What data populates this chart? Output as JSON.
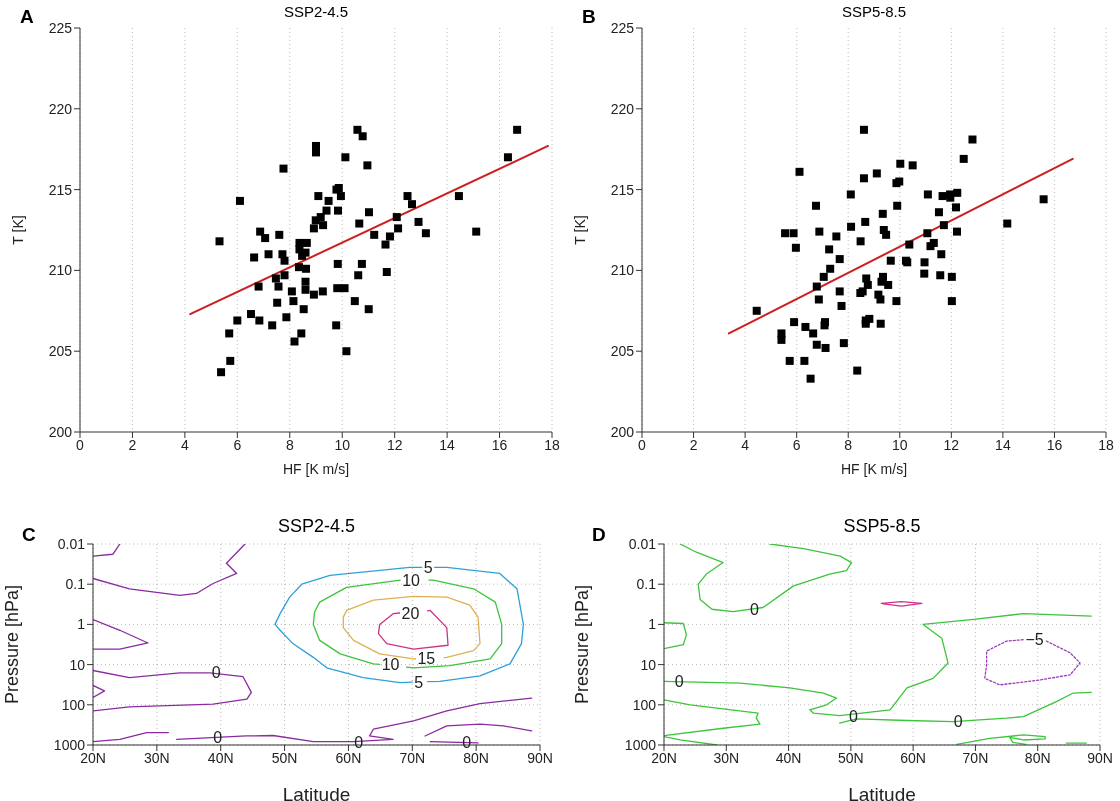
{
  "chart_data": [
    {
      "type": "scatter",
      "title": "SSP2-4.5",
      "xlabel": "HF [K m/s]",
      "ylabel": "T [K]",
      "annotations": [
        "A"
      ],
      "xlim": [
        0,
        18
      ],
      "xticks": [
        0,
        2,
        4,
        6,
        8,
        10,
        12,
        14,
        16,
        18
      ],
      "ylim": [
        200,
        225
      ],
      "yticks": [
        200,
        205,
        210,
        215,
        220,
        225
      ],
      "grid": "x",
      "marker": "square",
      "series": [
        {
          "type": "scatter",
          "color": "#000000",
          "x": [
            5.38,
            5.73,
            5.69,
            6.0,
            6.1,
            5.32,
            6.64,
            6.52,
            6.84,
            6.87,
            7.06,
            7.19,
            6.81,
            7.33,
            7.6,
            7.76,
            7.72,
            7.8,
            7.8,
            7.47,
            7.57,
            7.52,
            7.87,
            8.18,
            8.44,
            8.08,
            8.14,
            8.37,
            8.37,
            8.47,
            8.6,
            8.65,
            8.35,
            8.62,
            8.6,
            8.6,
            8.53,
            8.92,
            8.92,
            8.99,
            9.18,
            9.27,
            9.0,
            9.0,
            9.09,
            9.26,
            9.4,
            9.48,
            9.78,
            9.87,
            9.95,
            9.84,
            9.83,
            9.81,
            9.77,
            10.09,
            10.16,
            10.12,
            10.58,
            10.78,
            10.96,
            10.65,
            11.02,
            10.61,
            10.75,
            10.48,
            11.01,
            11.22,
            11.65,
            11.82,
            11.7,
            12.13,
            12.08,
            12.49,
            12.66,
            12.91,
            13.19,
            14.45,
            15.11,
            16.32,
            16.67
          ],
          "values": [
            203.7,
            204.4,
            206.1,
            206.9,
            214.3,
            211.8,
            210.8,
            207.3,
            206.9,
            212.4,
            212.0,
            211.0,
            209.0,
            206.6,
            212.2,
            216.3,
            211.0,
            210.6,
            209.7,
            209.5,
            209.0,
            208.0,
            207.1,
            205.6,
            206.1,
            208.7,
            208.1,
            211.7,
            211.3,
            210.9,
            211.1,
            211.7,
            210.2,
            210.1,
            209.3,
            208.8,
            207.6,
            208.5,
            212.6,
            213.1,
            213.3,
            212.8,
            217.7,
            217.3,
            214.6,
            208.7,
            213.7,
            214.3,
            215.0,
            215.1,
            214.6,
            213.7,
            210.4,
            208.9,
            206.6,
            208.9,
            205.0,
            217.0,
            218.7,
            218.3,
            216.5,
            212.9,
            213.6,
            209.7,
            210.4,
            208.1,
            207.6,
            212.2,
            211.6,
            212.1,
            209.9,
            212.6,
            213.3,
            214.6,
            214.1,
            213.0,
            212.3,
            214.6,
            212.4,
            217.0,
            218.7
          ]
        },
        {
          "type": "line",
          "color": "#cc1f1f",
          "line_style": "solid",
          "marker": "none",
          "x": [
            4.2,
            17.85
          ],
          "values": [
            207.3,
            217.7
          ]
        }
      ]
    },
    {
      "type": "scatter",
      "title": "SSP5-8.5",
      "xlabel": "HF [K m/s]",
      "ylabel": "T [K]",
      "annotations": [
        "B"
      ],
      "xlim": [
        0,
        18
      ],
      "xticks": [
        0,
        2,
        4,
        6,
        8,
        10,
        12,
        14,
        16,
        18
      ],
      "ylim": [
        200,
        225
      ],
      "yticks": [
        200,
        205,
        210,
        215,
        220,
        225
      ],
      "grid": "x",
      "marker": "square",
      "series": [
        {
          "type": "scatter",
          "color": "#000000",
          "x": [
            4.45,
            5.41,
            5.41,
            5.73,
            5.55,
            5.88,
            5.97,
            6.11,
            5.9,
            6.34,
            6.3,
            6.54,
            6.64,
            6.78,
            6.75,
            6.88,
            6.78,
            6.86,
            7.05,
            7.08,
            7.1,
            7.12,
            7.26,
            7.3,
            7.54,
            7.67,
            7.67,
            7.74,
            7.83,
            8.1,
            8.11,
            8.48,
            8.47,
            8.56,
            8.61,
            8.61,
            8.66,
            8.7,
            8.76,
            8.68,
            8.82,
            8.68,
            8.35,
            9.11,
            9.17,
            9.25,
            9.26,
            9.34,
            9.38,
            9.47,
            9.35,
            9.29,
            9.55,
            9.65,
            9.87,
            9.98,
            9.9,
            9.87,
            10.02,
            10.5,
            10.37,
            10.24,
            10.29,
            10.96,
            10.95,
            11.09,
            11.07,
            11.19,
            11.32,
            11.61,
            11.57,
            11.52,
            11.66,
            11.71,
            11.95,
            11.96,
            12.02,
            12.02,
            12.18,
            12.23,
            12.22,
            12.48,
            12.82,
            14.17,
            15.58
          ],
          "values": [
            207.5,
            206.1,
            205.7,
            204.4,
            212.3,
            212.3,
            211.4,
            216.1,
            206.8,
            206.5,
            204.4,
            203.3,
            206.1,
            205.4,
            214.0,
            212.4,
            209.0,
            208.2,
            209.6,
            206.6,
            206.8,
            205.2,
            211.3,
            210.1,
            212.1,
            210.7,
            208.7,
            207.8,
            205.5,
            214.7,
            212.7,
            211.8,
            208.6,
            208.7,
            218.7,
            215.7,
            213.0,
            209.5,
            209.1,
            206.9,
            207.0,
            206.7,
            203.8,
            216.0,
            208.5,
            208.2,
            206.7,
            213.5,
            212.5,
            212.2,
            209.6,
            209.3,
            209.1,
            210.6,
            215.4,
            215.5,
            214.0,
            208.1,
            216.6,
            216.5,
            211.6,
            210.6,
            210.5,
            210.5,
            209.8,
            214.7,
            212.3,
            211.5,
            211.7,
            211.0,
            209.7,
            213.6,
            214.6,
            212.8,
            214.7,
            214.5,
            209.6,
            208.1,
            213.9,
            214.8,
            212.4,
            216.9,
            218.1,
            212.9,
            214.4
          ]
        },
        {
          "type": "line",
          "color": "#cc1f1f",
          "line_style": "solid",
          "marker": "none",
          "x": [
            3.37,
            16.71
          ],
          "values": [
            206.1,
            216.9
          ]
        }
      ]
    },
    {
      "type": "line",
      "title": "SSP2-4.5",
      "xlabel": "Latitude",
      "ylabel": "Pressure [hPa]",
      "log": "y",
      "grid": true,
      "marker": "none",
      "line_style": "solid",
      "xlim": [
        20,
        90
      ],
      "xticks": [
        {
          "value": 20,
          "label": "20N"
        },
        {
          "value": 30,
          "label": "30N"
        },
        {
          "value": 40,
          "label": "40N"
        },
        {
          "value": 50,
          "label": "50N"
        },
        {
          "value": 60,
          "label": "60N"
        },
        {
          "value": 70,
          "label": "70N"
        },
        {
          "value": 80,
          "label": "80N"
        },
        {
          "value": 90,
          "label": "90N"
        }
      ],
      "ylim": [
        1000,
        0.01
      ],
      "yticks": [
        0.01,
        0.1,
        1,
        10,
        100,
        1000
      ],
      "annotations": [
        "C",
        {
          "text": "5",
          "x": 71.5,
          "y": 0.038
        },
        {
          "text": "10",
          "x": 68.1,
          "y": 0.079
        },
        {
          "text": "20",
          "x": 68.0,
          "y": 0.52
        },
        {
          "text": "15",
          "x": 70.5,
          "y": 7.15
        },
        {
          "text": "10",
          "x": 64.9,
          "y": 9.9
        },
        {
          "text": "5",
          "x": 70.0,
          "y": 27.4
        },
        {
          "text": "0",
          "x": 38.3,
          "y": 16
        },
        {
          "text": "0",
          "x": 38.5,
          "y": 656
        },
        {
          "text": "0",
          "x": 60.6,
          "y": 840
        },
        {
          "text": "0",
          "x": 77.5,
          "y": 840
        }
      ],
      "series": [
        {
          "color": "#2ea0d8",
          "x": [
            71.5,
            69.6,
            57.1,
            52.7,
            50.8,
            49.3,
            48.5,
            49.3,
            51.3,
            54.5,
            56.6,
            62.3,
            68.1,
            70.0
          ],
          "values": [
            0.038,
            0.038,
            0.06,
            0.1,
            0.21,
            0.54,
            1,
            1.4,
            3,
            6.6,
            12,
            21,
            28,
            27.4
          ]
        },
        {
          "color": "#2ea0d8",
          "x": [
            73.5,
            75.4,
            83.7,
            86.4,
            87.4,
            87.1,
            85.3,
            80.6,
            74.3,
            72.4
          ],
          "values": [
            0.038,
            0.038,
            0.054,
            0.13,
            1,
            3,
            9.6,
            19,
            26,
            26.6
          ]
        },
        {
          "color": "#3cc43c",
          "x": [
            68.1,
            59.7,
            55.5,
            54.7,
            54.5,
            55.5,
            58.7,
            63.9,
            64.9
          ],
          "values": [
            0.079,
            0.12,
            0.28,
            0.49,
            1,
            2.5,
            5.4,
            9.6,
            9.9
          ]
        },
        {
          "color": "#3cc43c",
          "x": [
            72.6,
            73.3,
            79.6,
            83.0,
            84.0,
            84.0,
            82.2,
            75.9,
            70.2,
            69.1
          ],
          "values": [
            0.079,
            0.079,
            0.13,
            0.28,
            1,
            3,
            7.2,
            10.6,
            12,
            11.6
          ]
        },
        {
          "color": "#e0b050",
          "x": [
            70.5,
            70.2,
            64.9,
            60.8,
            59.2,
            59.2,
            59.7,
            63.9,
            70.2,
            75.4,
            79.0,
            80.3,
            80.6,
            79.6,
            75.4,
            75.0
          ],
          "values": [
            7.15,
            7.2,
            5.4,
            2.5,
            1.2,
            0.66,
            0.45,
            0.25,
            0.2,
            0.21,
            0.33,
            0.66,
            3,
            4.5,
            6.6,
            6.7
          ]
        },
        {
          "color": "#d0308a",
          "x": [
            72.4,
            72.8,
            75.4,
            75.6,
            70.2,
            66.0,
            64.7,
            64.9,
            67.0,
            68.0
          ],
          "values": [
            0.46,
            0.45,
            1.2,
            3.3,
            4.1,
            3,
            1.7,
            1,
            0.54,
            0.52
          ]
        },
        {
          "color": "#8a2aa0",
          "x": [
            20,
            23.1,
            24.2
          ],
          "values": [
            0.02,
            0.018,
            0.01
          ]
        },
        {
          "color": "#8a2aa0",
          "x": [
            20,
            25.7,
            33.6,
            36.2,
            38.8,
            42.5,
            40.9,
            43.8
          ],
          "values": [
            0.072,
            0.13,
            0.19,
            0.17,
            0.096,
            0.054,
            0.03,
            0.01
          ]
        },
        {
          "color": "#8a2aa0",
          "x": [
            20,
            24.2,
            28.6,
            24.2,
            20
          ],
          "values": [
            0.76,
            1.4,
            2.9,
            4.1,
            4.1
          ]
        },
        {
          "color": "#8a2aa0",
          "x": [
            20,
            25.7,
            33.6,
            38.3,
            43.5,
            44.8,
            44.1,
            38.8,
            25.7,
            20
          ],
          "values": [
            14,
            21,
            16,
            16,
            20,
            49,
            72,
            96,
            112,
            141
          ]
        },
        {
          "color": "#8a2aa0",
          "x": [
            20,
            21.8,
            20
          ],
          "values": [
            33,
            45,
            66
          ]
        },
        {
          "color": "#8a2aa0",
          "x": [
            20,
            24.2,
            28.4,
            31.8
          ],
          "values": [
            826,
            721,
            492,
            492
          ]
        },
        {
          "color": "#8a2aa0",
          "x": [
            33.1,
            44.0,
            48.2,
            54.5,
            60.8,
            67.0,
            63.3,
            63.9,
            70.2,
            75.4,
            80.6,
            88.7
          ],
          "values": [
            721,
            596,
            580,
            826,
            826,
            721,
            596,
            405,
            251,
            141,
            93,
            68
          ]
        },
        {
          "color": "#8a2aa0",
          "x": [
            72.0,
            75.4,
            80.6,
            84.3,
            88.7
          ],
          "values": [
            596,
            335,
            304,
            335,
            447
          ]
        },
        {
          "color": "#8a2aa0",
          "x": [
            72.8,
            80.3
          ],
          "values": [
            826,
            890
          ]
        }
      ]
    },
    {
      "type": "line",
      "title": "SSP5-8.5",
      "xlabel": "Latitude",
      "ylabel": "Pressure [hPa]",
      "log": "y",
      "grid": true,
      "marker": "none",
      "line_style": "solid",
      "xlim": [
        20,
        90
      ],
      "xticks": [
        {
          "value": 20,
          "label": "20N"
        },
        {
          "value": 30,
          "label": "30N"
        },
        {
          "value": 40,
          "label": "40N"
        },
        {
          "value": 50,
          "label": "50N"
        },
        {
          "value": 60,
          "label": "60N"
        },
        {
          "value": 70,
          "label": "70N"
        },
        {
          "value": 80,
          "label": "80N"
        },
        {
          "value": 90,
          "label": "90N"
        }
      ],
      "ylim": [
        1000,
        0.01
      ],
      "yticks": [
        0.01,
        0.1,
        1,
        10,
        100,
        1000
      ],
      "annotations": [
        "D",
        {
          "text": "0",
          "x": 33.5,
          "y": 0.43
        },
        {
          "text": "0",
          "x": 21.4,
          "y": 26
        },
        {
          "text": "0",
          "x": 49.4,
          "y": 190
        },
        {
          "text": "0",
          "x": 66.2,
          "y": 261
        },
        {
          "text": "−5",
          "x": 77.7,
          "y": 2.4
        }
      ],
      "series": [
        {
          "color": "#3cc43c",
          "x": [
            22.6,
            25.2,
            29.5,
            26.8,
            25.5,
            25.8,
            27.7,
            31.1,
            35.9,
            40.8,
            46.6,
            49.3,
            50.1,
            48.3,
            42.4,
            37.0
          ],
          "values": [
            0.01,
            0.016,
            0.029,
            0.056,
            0.1,
            0.24,
            0.42,
            0.48,
            0.38,
            0.11,
            0.056,
            0.046,
            0.029,
            0.02,
            0.013,
            0.01
          ]
        },
        {
          "color": "#3cc43c",
          "x": [
            20,
            23.1,
            23.6,
            23.1,
            20
          ],
          "values": [
            0.91,
            0.95,
            1.8,
            3.2,
            4.0
          ]
        },
        {
          "color": "#3cc43c",
          "x": [
            20,
            32.2,
            40.2,
            45.6,
            47.7,
            46.1,
            43.4,
            44.0,
            48.2,
            56.3,
            59.0,
            63.2,
            65.6,
            64.6,
            61.6,
            69.7,
            77.7,
            88.6
          ],
          "values": [
            26,
            29,
            38,
            51,
            68,
            100,
            133,
            162,
            185,
            133,
            38,
            22,
            9.1,
            2.2,
            1.0,
            0.75,
            0.54,
            0.62
          ]
        },
        {
          "color": "#3cc43c",
          "x": [
            20,
            24.2,
            35.1,
            34.8,
            35.4,
            29.5,
            20
          ],
          "values": [
            75,
            100,
            162,
            215,
            304,
            383,
            584
          ]
        },
        {
          "color": "#3cc43c",
          "x": [
            20,
            22.6,
            28.5
          ],
          "values": [
            619,
            750,
            1000
          ]
        },
        {
          "color": "#3cc43c",
          "x": [
            48.2,
            50.9,
            59.0,
            66.4,
            75.0,
            77.7,
            83.0,
            85.7,
            88.6
          ],
          "values": [
            287,
            224,
            246,
            261,
            215,
            196,
            83,
            51,
            49
          ]
        },
        {
          "color": "#3cc43c",
          "x": [
            67.0,
            72.3,
            77.7,
            81.2,
            81.2,
            77.7,
            75.5,
            76.0,
            78.1
          ],
          "values": [
            962,
            681,
            562,
            619,
            708,
            750,
            642,
            858,
            962
          ]
        },
        {
          "color": "#3cc43c",
          "x": [
            84.6,
            87.8
          ],
          "values": [
            900,
            900
          ]
        },
        {
          "color": "#d0308a",
          "x": [
            54.9,
            58.1,
            61.4,
            58.1,
            55.2
          ],
          "values": [
            0.3,
            0.27,
            0.3,
            0.35,
            0.31
          ]
        },
        {
          "color": "#9b3ab8",
          "line_style": "dotted",
          "x": [
            81.4,
            85.2,
            86.8,
            85.2,
            80.4,
            73.9,
            71.5,
            71.8,
            71.8,
            75.0,
            77.7
          ],
          "values": [
            2.6,
            5.1,
            9.1,
            18,
            24,
            32,
            22,
            10,
            4.6,
            2.6,
            2.4
          ]
        }
      ]
    }
  ]
}
